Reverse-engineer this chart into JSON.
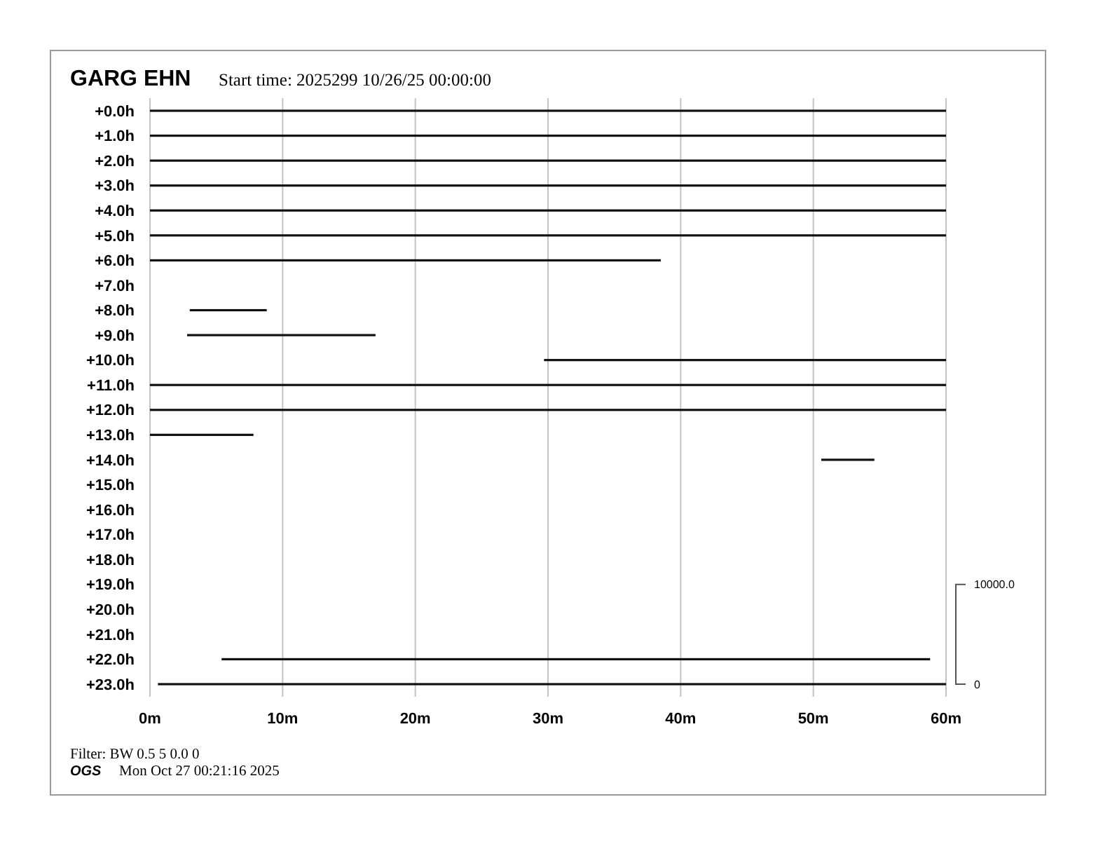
{
  "chart_data": {
    "type": "bar",
    "orientation": "horizontal",
    "title": "GARG EHN",
    "subtitle": "Start time: 2025299 10/26/25 00:00:00",
    "categories": [
      "+0.0h",
      "+1.0h",
      "+2.0h",
      "+3.0h",
      "+4.0h",
      "+5.0h",
      "+6.0h",
      "+7.0h",
      "+8.0h",
      "+9.0h",
      "+10.0h",
      "+11.0h",
      "+12.0h",
      "+13.0h",
      "+14.0h",
      "+15.0h",
      "+16.0h",
      "+17.0h",
      "+18.0h",
      "+19.0h",
      "+20.0h",
      "+21.0h",
      "+22.0h",
      "+23.0h"
    ],
    "base": [
      0,
      0,
      0,
      0,
      0,
      0,
      0,
      null,
      3.0,
      2.8,
      29.7,
      0,
      0,
      0,
      50.6,
      null,
      null,
      null,
      null,
      null,
      null,
      null,
      5.4,
      0.6
    ],
    "values": [
      60,
      60,
      60,
      60,
      60,
      60,
      38.5,
      null,
      5.8,
      14.2,
      30.3,
      60,
      60,
      7.8,
      4.0,
      null,
      null,
      null,
      null,
      null,
      null,
      null,
      53.4,
      59.4
    ],
    "color": "#111111",
    "xlim": [
      0,
      60
    ],
    "xticks": [
      {
        "value": 0,
        "label": "0m"
      },
      {
        "value": 10,
        "label": "10m"
      },
      {
        "value": 20,
        "label": "20m"
      },
      {
        "value": 30,
        "label": "30m"
      },
      {
        "value": 40,
        "label": "40m"
      },
      {
        "value": 50,
        "label": "50m"
      },
      {
        "value": 60,
        "label": "60m"
      }
    ],
    "grid": "x",
    "annotations": [
      "10000.0",
      "0",
      "Filter: BW 0.5 5 0.0 0",
      "OGS",
      "Mon Oct 27 00:21:16 2025"
    ]
  }
}
